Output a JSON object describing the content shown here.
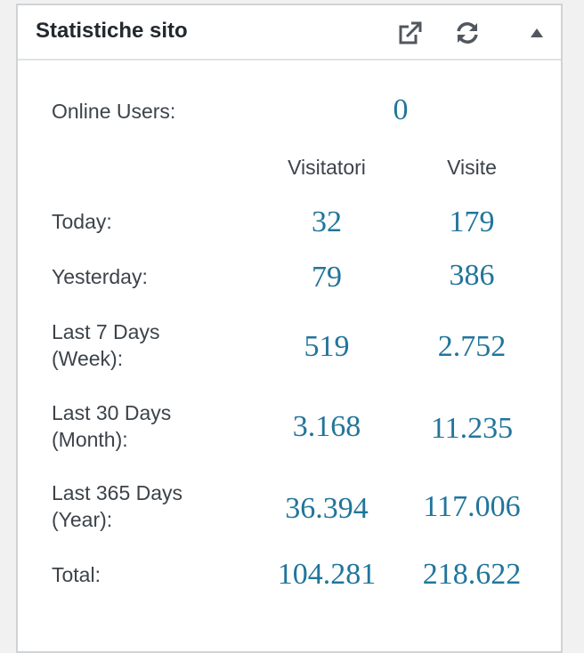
{
  "widget": {
    "title": "Statistiche sito",
    "icons": {
      "external": "external-link-icon",
      "refresh": "refresh-icon",
      "toggle": "collapse-arrow-icon"
    }
  },
  "online": {
    "label": "Online Users:",
    "value": "0"
  },
  "columns": {
    "visitors": "Visitatori",
    "visits": "Visite"
  },
  "rows": [
    {
      "label": "Today:",
      "visitors": "32",
      "visits": "179"
    },
    {
      "label": "Yesterday:",
      "visitors": "79",
      "visits": "386"
    },
    {
      "label": "Last 7 Days\n(Week):",
      "visitors": "519",
      "visits": "2.752"
    },
    {
      "label": "Last 30 Days\n(Month):",
      "visitors": "3.168",
      "visits": "11.235"
    },
    {
      "label": "Last 365 Days\n(Year):",
      "visitors": "36.394",
      "visits": "117.006"
    },
    {
      "label": "Total:",
      "visitors": "104.281",
      "visits": "218.622"
    }
  ],
  "colors": {
    "accent": "#21759b",
    "text": "#3c434a",
    "border": "#d0d3d6"
  }
}
